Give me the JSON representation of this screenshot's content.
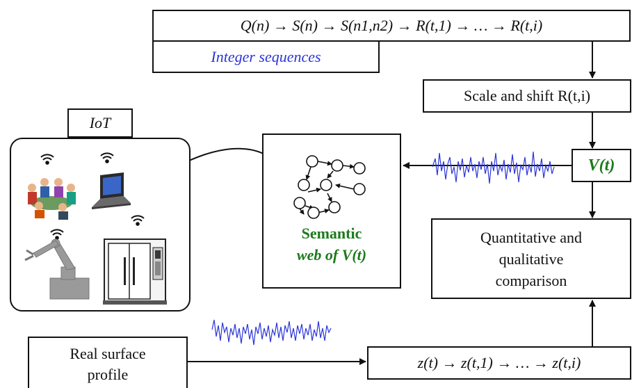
{
  "top_chain": "Q(n) → S(n) → S(n1,n2) → R(t,1) → … → R(t,i)",
  "integer_label": "Integer sequences",
  "scale_shift": "Scale and shift R(t,i)",
  "vt_label": "V(t)",
  "semantic_web": {
    "line1": "Semantic",
    "line2": "web of V(t)"
  },
  "iot_label": "IoT",
  "comparison": {
    "line1": "Quantitative and",
    "line2": "qualitative",
    "line3": "comparison"
  },
  "real_surface": {
    "line1": "Real surface",
    "line2": "profile"
  },
  "bottom_chain": "z(t) → z(t,1) → … → z(t,i)",
  "colors": {
    "accent_blue": "#2b35d8",
    "accent_green": "#1a7a1a",
    "stroke": "#111111"
  },
  "icons": [
    "wifi-icon",
    "people-meeting-icon",
    "laptop-icon",
    "robot-arm-icon",
    "machine-tool-icon",
    "network-graph-icon",
    "signal-wave-icon"
  ]
}
